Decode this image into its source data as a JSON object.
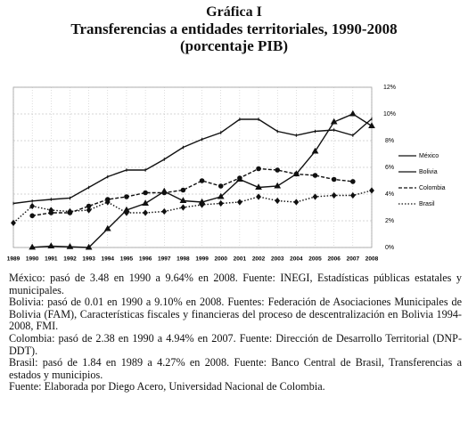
{
  "chart_data": {
    "type": "line",
    "label": "Gráfica I",
    "title": "Transferencias a entidades territoriales, 1990-2008",
    "subtitle": "(porcentaje PIB)",
    "x": [
      1989,
      1990,
      1991,
      1992,
      1993,
      1994,
      1995,
      1996,
      1997,
      1998,
      1999,
      2000,
      2001,
      2002,
      2003,
      2004,
      2005,
      2006,
      2007,
      2008
    ],
    "xlim": [
      1989,
      2008
    ],
    "ylim": [
      0,
      12
    ],
    "yticks": [
      {
        "value": 0,
        "label": "0%"
      },
      {
        "value": 2,
        "label": "2%"
      },
      {
        "value": 4,
        "label": "4%"
      },
      {
        "value": 6,
        "label": "6%"
      },
      {
        "value": 8,
        "label": "8%"
      },
      {
        "value": 10,
        "label": "10%"
      },
      {
        "value": 12,
        "label": "12%"
      }
    ],
    "grid": true,
    "legend": "right",
    "series": [
      {
        "name": "México",
        "color": "#111111",
        "marker": "tick",
        "dash": "solid",
        "values": [
          3.3,
          3.48,
          3.6,
          3.7,
          4.5,
          5.3,
          5.8,
          5.8,
          6.6,
          7.5,
          8.1,
          8.6,
          9.6,
          9.6,
          8.7,
          8.4,
          8.7,
          8.8,
          8.4,
          9.64
        ]
      },
      {
        "name": "Bolivia",
        "color": "#111111",
        "marker": "triangle",
        "dash": "solid",
        "values": [
          null,
          0.01,
          0.1,
          0.05,
          0.0,
          1.4,
          2.8,
          3.3,
          4.2,
          3.5,
          3.4,
          3.8,
          5.1,
          4.5,
          4.6,
          5.5,
          7.2,
          9.4,
          10.0,
          9.1
        ]
      },
      {
        "name": "Colombia",
        "color": "#111111",
        "marker": "circle",
        "dash": "dashed",
        "values": [
          null,
          2.38,
          2.6,
          2.6,
          3.1,
          3.6,
          3.8,
          4.1,
          4.1,
          4.3,
          5.0,
          4.6,
          5.2,
          5.9,
          5.8,
          5.5,
          5.4,
          5.1,
          4.94,
          null
        ]
      },
      {
        "name": "Brasil",
        "color": "#111111",
        "marker": "diamond",
        "dash": "dotted",
        "values": [
          1.84,
          3.1,
          2.8,
          2.7,
          2.8,
          3.4,
          2.6,
          2.6,
          2.7,
          3.0,
          3.2,
          3.3,
          3.4,
          3.8,
          3.5,
          3.4,
          3.8,
          3.9,
          3.9,
          4.27
        ]
      }
    ]
  },
  "notes": [
    "México: pasó de 3.48 en 1990 a 9.64% en 2008. Fuente: INEGI, Estadísticas públicas estatales y municipales.",
    "Bolivia: pasó de 0.01 en 1990 a 9.10% en 2008. Fuentes: Federación de Asociaciones Municipales de Bolivia (FAM), Características fiscales y financieras del proceso de descentralización en Bolivia 1994-2008, FMI.",
    "Colombia: pasó de 2.38 en 1990 a 4.94% en 2007. Fuente: Dirección de Desarrollo Territorial (DNP-DDT).",
    "Brasil: pasó de 1.84 en 1989 a 4.27% en 2008. Fuente: Banco Central de Brasil, Transferencias a estados y municipios.",
    "Fuente: Elaborada por Diego Acero, Universidad Nacional de Colombia."
  ]
}
